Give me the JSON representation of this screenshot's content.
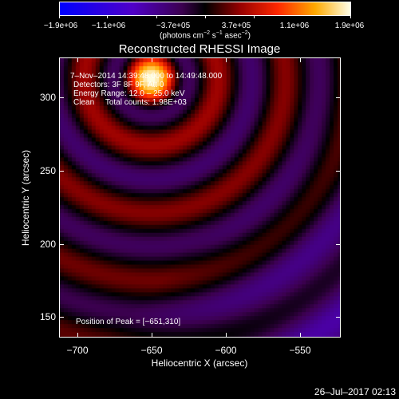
{
  "colorbar": {
    "tick_labels": [
      "−1.9e+06",
      "−1.1e+06",
      "−3.7e+05",
      "3.7e+05",
      "1.1e+06",
      "1.9e+06"
    ],
    "units_prefix": "(photons cm",
    "units_exp1": "−2",
    "units_mid": " s",
    "units_exp2": "−1",
    "units_mid2": " asec",
    "units_exp3": "−2",
    "units_suffix": ")"
  },
  "title": "Reconstructed RHESSI Image",
  "info": {
    "line1": "7–Nov–2014 14:39:48.000 to 14:49:48.000",
    "line2": "Detectors: 3F 8F 9F, Att 0",
    "line3": "Energy Range: 12.0 – 25.0 keV",
    "line4": "Clean     Total counts: 1.98E+03",
    "peak": "Position of Peak = [−651,310]"
  },
  "axes": {
    "xlabel": "Heliocentric X (arcsec)",
    "ylabel": "Heliocentric Y (arcsec)",
    "x_tick_labels": [
      "−700",
      "−650",
      "−600",
      "−550"
    ],
    "y_tick_labels": [
      "300",
      "250",
      "200",
      "150"
    ],
    "xlim": [
      -713,
      -523
    ],
    "ylim": [
      133,
      324
    ]
  },
  "peak_position": [
    -651,
    310
  ],
  "footer": "26–Jul–2017 02:13"
}
